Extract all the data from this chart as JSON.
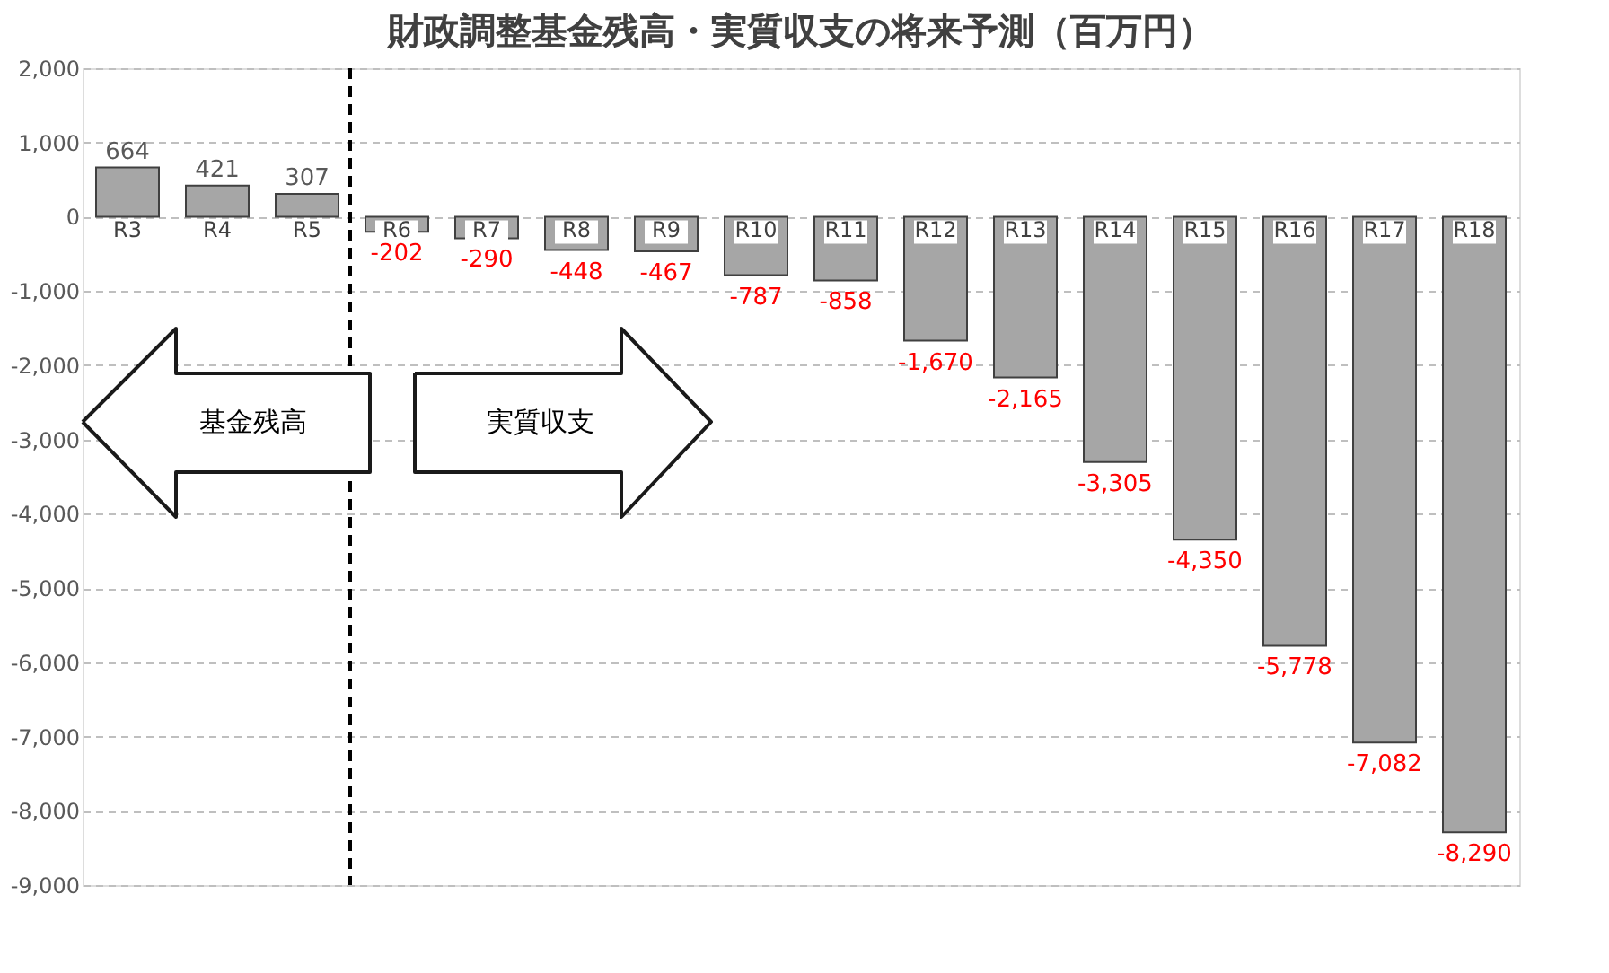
{
  "chart_data": {
    "type": "bar",
    "title": "財政調整基金残高・実質収支の将来予測（百万円）",
    "categories": [
      "R3",
      "R4",
      "R5",
      "R6",
      "R7",
      "R8",
      "R9",
      "R10",
      "R11",
      "R12",
      "R13",
      "R14",
      "R15",
      "R16",
      "R17",
      "R18"
    ],
    "values": [
      664,
      421,
      307,
      -202,
      -290,
      -448,
      -467,
      -787,
      -858,
      -1670,
      -2165,
      -3305,
      -4350,
      -5778,
      -7082,
      -8290
    ],
    "color": "#a6a6a6",
    "value_labels": [
      "664",
      "421",
      "307",
      "-202",
      "-290",
      "-448",
      "-467",
      "-787",
      "-858",
      "-1,670",
      "-2,165",
      "-3,305",
      "-4,350",
      "-5,778",
      "-7,082",
      "-8,290"
    ],
    "ylim": [
      -9000,
      2000
    ],
    "yticks": [
      {
        "value": -9000,
        "label": "-9,000"
      },
      {
        "value": -8000,
        "label": "-8,000"
      },
      {
        "value": -7000,
        "label": "-7,000"
      },
      {
        "value": -6000,
        "label": "-6,000"
      },
      {
        "value": -5000,
        "label": "-5,000"
      },
      {
        "value": -4000,
        "label": "-4,000"
      },
      {
        "value": -3000,
        "label": "-3,000"
      },
      {
        "value": -2000,
        "label": "-2,000"
      },
      {
        "value": -1000,
        "label": "-1,000"
      },
      0,
      {
        "value": 1000,
        "label": "1,000"
      },
      {
        "value": 2000,
        "label": "2,000"
      }
    ],
    "grid": "y",
    "ref_lines": [
      {
        "axis": "x",
        "value": "R6",
        "line_style": "dashed",
        "color": "#000000"
      }
    ],
    "annotations": [
      "基金残高",
      "実質収支"
    ]
  }
}
